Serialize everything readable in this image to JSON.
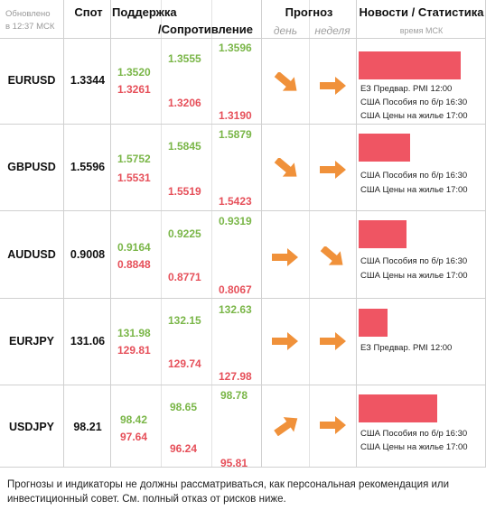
{
  "header": {
    "updated_line1": "Обновлено",
    "updated_line2": "в 12:37 МСК",
    "spot": "Спот",
    "support": "Поддержка",
    "resistance": "/Сопротивление",
    "forecast": "Прогноз",
    "day": "день",
    "week": "неделя",
    "news": "Новости / Статистика",
    "time_note": "время МСК"
  },
  "colors": {
    "support": "#7ab648",
    "resistance": "#e6505a",
    "arrow": "#f0913a",
    "news_bar": "#ef5563"
  },
  "rows": [
    {
      "pair": "EURUSD",
      "spot": "1.3344",
      "s1": "1.3520",
      "r1": "1.3261",
      "s2": "1.3555",
      "r2": "1.3206",
      "s3": "1.3596",
      "r3": "1.3190",
      "day": "down-right-arrow",
      "week": "right-arrow",
      "news_level": 0.81,
      "events": [
        "ЕЗ Предвар. PMI 12:00",
        "США Пособия по б/р 16:30",
        "США Цены на жилье 17:00"
      ]
    },
    {
      "pair": "GBPUSD",
      "spot": "1.5596",
      "s1": "1.5752",
      "r1": "1.5531",
      "s2": "1.5845",
      "r2": "1.5519",
      "s3": "1.5879",
      "r3": "1.5423",
      "day": "down-right-arrow",
      "week": "right-arrow",
      "news_level": 0.41,
      "events": [
        "США Пособия по б/р 16:30",
        "США Цены на жилье 17:00"
      ]
    },
    {
      "pair": "AUDUSD",
      "spot": "0.9008",
      "s1": "0.9164",
      "r1": "0.8848",
      "s2": "0.9225",
      "r2": "0.8771",
      "s3": "0.9319",
      "r3": "0.8067",
      "day": "right-arrow",
      "week": "down-right-arrow",
      "news_level": 0.38,
      "events": [
        "США Пособия по б/р 16:30",
        "США Цены на жилье 17:00"
      ]
    },
    {
      "pair": "EURJPY",
      "spot": "131.06",
      "s1": "131.98",
      "r1": "129.81",
      "s2": "132.15",
      "r2": "129.74",
      "s3": "132.63",
      "r3": "127.98",
      "day": "right-arrow",
      "week": "right-arrow",
      "news_level": 0.23,
      "events": [
        "ЕЗ Предвар. PMI 12:00"
      ]
    },
    {
      "pair": "USDJPY",
      "spot": "98.21",
      "s1": "98.42",
      "r1": "97.64",
      "s2": "98.65",
      "r2": "96.24",
      "s3": "98.78",
      "r3": "95.81",
      "day": "up-right-arrow",
      "week": "right-arrow",
      "news_level": 0.62,
      "events": [
        "США Пособия по б/р 16:30",
        "США Цены на жилье 17:00"
      ]
    }
  ],
  "footer": "Прогнозы и индикаторы не должны рассматриваться, как персональная рекомендация или инвестиционный совет. См. полный отказ от рисков ниже."
}
